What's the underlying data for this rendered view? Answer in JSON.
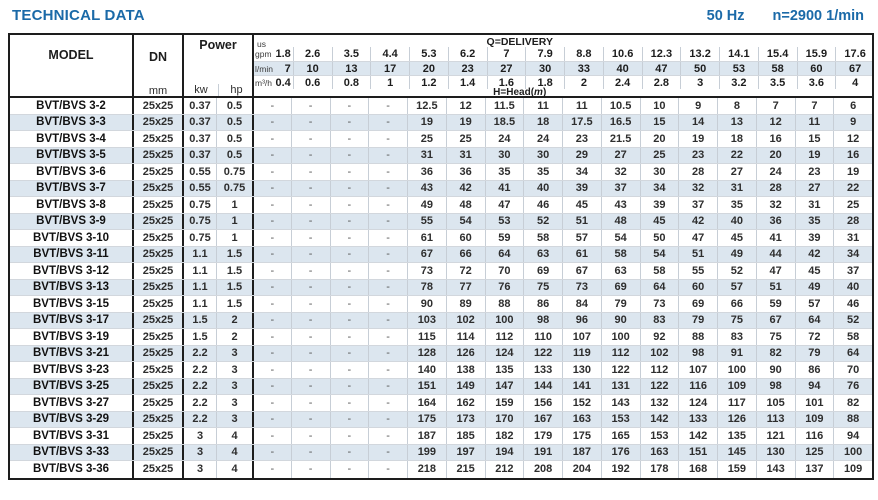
{
  "page": {
    "title": "TECHNICAL DATA",
    "frequency": "50 Hz",
    "speed": "n=2900 1/min"
  },
  "table": {
    "headers": {
      "model": "MODEL",
      "dn": "DN",
      "dn_unit": "mm",
      "power": "Power",
      "kw": "kw",
      "hp": "hp",
      "us": "us",
      "delivery": "Q=DELIVERY",
      "head_pre": "H=Head(",
      "head_unit": "m",
      "head_post": ")"
    },
    "unit_rows": [
      {
        "label": "gpm",
        "values": [
          "1.8",
          "2.6",
          "3.5",
          "4.4",
          "5.3",
          "6.2",
          "7",
          "7.9",
          "8.8",
          "10.6",
          "12.3",
          "13.2",
          "14.1",
          "15.4",
          "15.9",
          "17.6"
        ]
      },
      {
        "label": "l/min",
        "values": [
          "7",
          "10",
          "13",
          "17",
          "20",
          "23",
          "27",
          "30",
          "33",
          "40",
          "47",
          "50",
          "53",
          "58",
          "60",
          "67"
        ]
      },
      {
        "label": "m³/h",
        "values": [
          "0.4",
          "0.6",
          "0.8",
          "1",
          "1.2",
          "1.4",
          "1.6",
          "1.8",
          "2",
          "2.4",
          "2.8",
          "3",
          "3.2",
          "3.5",
          "3.6",
          "4"
        ]
      }
    ],
    "rows": [
      {
        "model": "BVT/BVS 3-2",
        "dn": "25x25",
        "kw": "0.37",
        "hp": "0.5",
        "heads": [
          "-",
          "-",
          "-",
          "-",
          "12.5",
          "12",
          "11.5",
          "11",
          "11",
          "10.5",
          "10",
          "9",
          "8",
          "7",
          "7",
          "6"
        ]
      },
      {
        "model": "BVT/BVS 3-3",
        "dn": "25x25",
        "kw": "0.37",
        "hp": "0.5",
        "heads": [
          "-",
          "-",
          "-",
          "-",
          "19",
          "19",
          "18.5",
          "18",
          "17.5",
          "16.5",
          "15",
          "14",
          "13",
          "12",
          "11",
          "9"
        ]
      },
      {
        "model": "BVT/BVS 3-4",
        "dn": "25x25",
        "kw": "0.37",
        "hp": "0.5",
        "heads": [
          "-",
          "-",
          "-",
          "-",
          "25",
          "25",
          "24",
          "24",
          "23",
          "21.5",
          "20",
          "19",
          "18",
          "16",
          "15",
          "12"
        ]
      },
      {
        "model": "BVT/BVS 3-5",
        "dn": "25x25",
        "kw": "0.37",
        "hp": "0.5",
        "heads": [
          "-",
          "-",
          "-",
          "-",
          "31",
          "31",
          "30",
          "30",
          "29",
          "27",
          "25",
          "23",
          "22",
          "20",
          "19",
          "16"
        ]
      },
      {
        "model": "BVT/BVS 3-6",
        "dn": "25x25",
        "kw": "0.55",
        "hp": "0.75",
        "heads": [
          "-",
          "-",
          "-",
          "-",
          "36",
          "36",
          "35",
          "35",
          "34",
          "32",
          "30",
          "28",
          "27",
          "24",
          "23",
          "19"
        ]
      },
      {
        "model": "BVT/BVS 3-7",
        "dn": "25x25",
        "kw": "0.55",
        "hp": "0.75",
        "heads": [
          "-",
          "-",
          "-",
          "-",
          "43",
          "42",
          "41",
          "40",
          "39",
          "37",
          "34",
          "32",
          "31",
          "28",
          "27",
          "22"
        ]
      },
      {
        "model": "BVT/BVS 3-8",
        "dn": "25x25",
        "kw": "0.75",
        "hp": "1",
        "heads": [
          "-",
          "-",
          "-",
          "-",
          "49",
          "48",
          "47",
          "46",
          "45",
          "43",
          "39",
          "37",
          "35",
          "32",
          "31",
          "25"
        ]
      },
      {
        "model": "BVT/BVS 3-9",
        "dn": "25x25",
        "kw": "0.75",
        "hp": "1",
        "heads": [
          "-",
          "-",
          "-",
          "-",
          "55",
          "54",
          "53",
          "52",
          "51",
          "48",
          "45",
          "42",
          "40",
          "36",
          "35",
          "28"
        ]
      },
      {
        "model": "BVT/BVS 3-10",
        "dn": "25x25",
        "kw": "0.75",
        "hp": "1",
        "heads": [
          "-",
          "-",
          "-",
          "-",
          "61",
          "60",
          "59",
          "58",
          "57",
          "54",
          "50",
          "47",
          "45",
          "41",
          "39",
          "31"
        ]
      },
      {
        "model": "BVT/BVS 3-11",
        "dn": "25x25",
        "kw": "1.1",
        "hp": "1.5",
        "heads": [
          "-",
          "-",
          "-",
          "-",
          "67",
          "66",
          "64",
          "63",
          "61",
          "58",
          "54",
          "51",
          "49",
          "44",
          "42",
          "34"
        ]
      },
      {
        "model": "BVT/BVS 3-12",
        "dn": "25x25",
        "kw": "1.1",
        "hp": "1.5",
        "heads": [
          "-",
          "-",
          "-",
          "-",
          "73",
          "72",
          "70",
          "69",
          "67",
          "63",
          "58",
          "55",
          "52",
          "47",
          "45",
          "37"
        ]
      },
      {
        "model": "BVT/BVS 3-13",
        "dn": "25x25",
        "kw": "1.1",
        "hp": "1.5",
        "heads": [
          "-",
          "-",
          "-",
          "-",
          "78",
          "77",
          "76",
          "75",
          "73",
          "69",
          "64",
          "60",
          "57",
          "51",
          "49",
          "40"
        ]
      },
      {
        "model": "BVT/BVS 3-15",
        "dn": "25x25",
        "kw": "1.1",
        "hp": "1.5",
        "heads": [
          "-",
          "-",
          "-",
          "-",
          "90",
          "89",
          "88",
          "86",
          "84",
          "79",
          "73",
          "69",
          "66",
          "59",
          "57",
          "46"
        ]
      },
      {
        "model": "BVT/BVS 3-17",
        "dn": "25x25",
        "kw": "1.5",
        "hp": "2",
        "heads": [
          "-",
          "-",
          "-",
          "-",
          "103",
          "102",
          "100",
          "98",
          "96",
          "90",
          "83",
          "79",
          "75",
          "67",
          "64",
          "52"
        ]
      },
      {
        "model": "BVT/BVS 3-19",
        "dn": "25x25",
        "kw": "1.5",
        "hp": "2",
        "heads": [
          "-",
          "-",
          "-",
          "-",
          "115",
          "114",
          "112",
          "110",
          "107",
          "100",
          "92",
          "88",
          "83",
          "75",
          "72",
          "58"
        ]
      },
      {
        "model": "BVT/BVS 3-21",
        "dn": "25x25",
        "kw": "2.2",
        "hp": "3",
        "heads": [
          "-",
          "-",
          "-",
          "-",
          "128",
          "126",
          "124",
          "122",
          "119",
          "112",
          "102",
          "98",
          "91",
          "82",
          "79",
          "64"
        ]
      },
      {
        "model": "BVT/BVS 3-23",
        "dn": "25x25",
        "kw": "2.2",
        "hp": "3",
        "heads": [
          "-",
          "-",
          "-",
          "-",
          "140",
          "138",
          "135",
          "133",
          "130",
          "122",
          "112",
          "107",
          "100",
          "90",
          "86",
          "70"
        ]
      },
      {
        "model": "BVT/BVS 3-25",
        "dn": "25x25",
        "kw": "2.2",
        "hp": "3",
        "heads": [
          "-",
          "-",
          "-",
          "-",
          "151",
          "149",
          "147",
          "144",
          "141",
          "131",
          "122",
          "116",
          "109",
          "98",
          "94",
          "76"
        ]
      },
      {
        "model": "BVT/BVS 3-27",
        "dn": "25x25",
        "kw": "2.2",
        "hp": "3",
        "heads": [
          "-",
          "-",
          "-",
          "-",
          "164",
          "162",
          "159",
          "156",
          "152",
          "143",
          "132",
          "124",
          "117",
          "105",
          "101",
          "82"
        ]
      },
      {
        "model": "BVT/BVS 3-29",
        "dn": "25x25",
        "kw": "2.2",
        "hp": "3",
        "heads": [
          "-",
          "-",
          "-",
          "-",
          "175",
          "173",
          "170",
          "167",
          "163",
          "153",
          "142",
          "133",
          "126",
          "113",
          "109",
          "88"
        ]
      },
      {
        "model": "BVT/BVS 3-31",
        "dn": "25x25",
        "kw": "3",
        "hp": "4",
        "heads": [
          "-",
          "-",
          "-",
          "-",
          "187",
          "185",
          "182",
          "179",
          "175",
          "165",
          "153",
          "142",
          "135",
          "121",
          "116",
          "94"
        ]
      },
      {
        "model": "BVT/BVS 3-33",
        "dn": "25x25",
        "kw": "3",
        "hp": "4",
        "heads": [
          "-",
          "-",
          "-",
          "-",
          "199",
          "197",
          "194",
          "191",
          "187",
          "176",
          "163",
          "151",
          "145",
          "130",
          "125",
          "100"
        ]
      },
      {
        "model": "BVT/BVS 3-36",
        "dn": "25x25",
        "kw": "3",
        "hp": "4",
        "heads": [
          "-",
          "-",
          "-",
          "-",
          "218",
          "215",
          "212",
          "208",
          "204",
          "192",
          "178",
          "168",
          "159",
          "143",
          "137",
          "109"
        ]
      }
    ]
  }
}
